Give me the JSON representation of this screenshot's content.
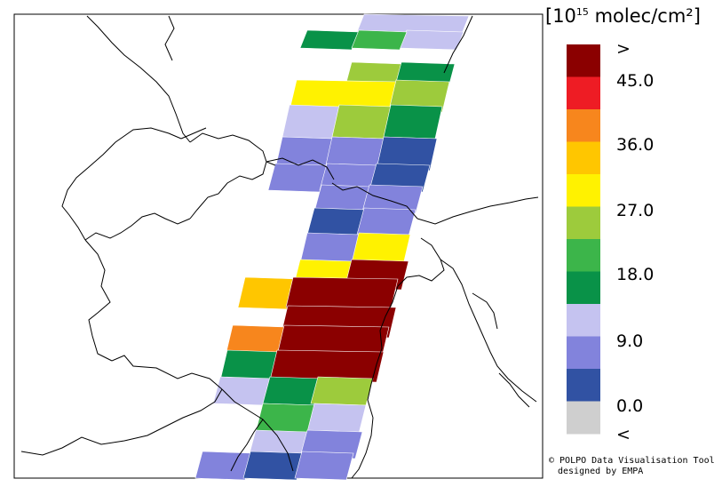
{
  "legend": {
    "title_prefix": "[10",
    "title_exponent": "15",
    "title_suffix": " molec/cm²]",
    "colors": [
      "#8b0000",
      "#ee1c24",
      "#f7861d",
      "#ffc600",
      "#fff200",
      "#9dcb3c",
      "#3cb54a",
      "#099248",
      "#c5c3f0",
      "#8283dc",
      "#3152a3",
      "#cfcfcf"
    ],
    "labels": [
      ">",
      "45.0",
      "36.0",
      "27.0",
      "18.0",
      "9.0",
      "0.0",
      "<"
    ]
  },
  "credit": {
    "line1": "© POLPO Data Visualisation Tool",
    "line2": "designed by EMPA"
  }
}
